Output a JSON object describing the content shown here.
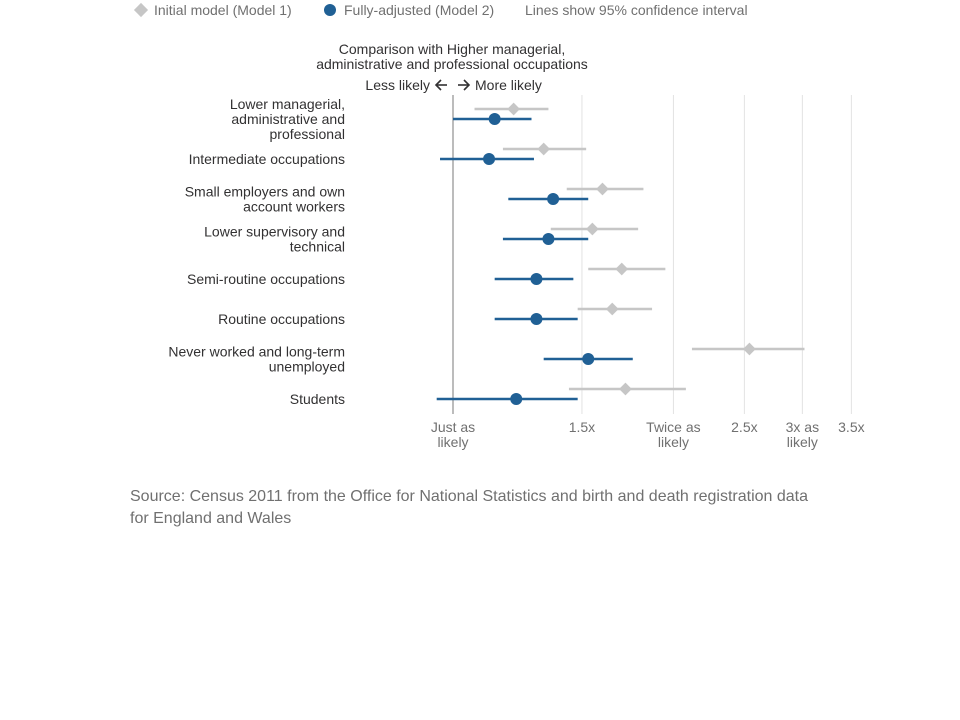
{
  "chart_data": {
    "type": "scatter",
    "header_lines": [
      "Comparison with Higher managerial,",
      "administrative and professional occupations"
    ],
    "direction": {
      "less": "Less likely",
      "more": "More likely"
    },
    "legend": [
      {
        "label": "Initial model (Model 1)",
        "marker": "diamond",
        "color": "#c6c6c6"
      },
      {
        "label": "Fully-adjusted (Model 2)",
        "marker": "circle",
        "color": "#206095"
      },
      {
        "label": "Lines show 95% confidence interval",
        "marker": "none"
      }
    ],
    "categories": [
      {
        "lines": [
          "Lower managerial,",
          "administrative and",
          "professional"
        ]
      },
      {
        "lines": [
          "Intermediate occupations"
        ]
      },
      {
        "lines": [
          "Small employers and own",
          "account workers"
        ]
      },
      {
        "lines": [
          "Lower supervisory and",
          "technical"
        ]
      },
      {
        "lines": [
          "Semi-routine occupations"
        ]
      },
      {
        "lines": [
          "Routine occupations"
        ]
      },
      {
        "lines": [
          "Never worked and long-term",
          "unemployed"
        ]
      },
      {
        "lines": [
          "Students"
        ]
      }
    ],
    "series": [
      {
        "name": "Initial model (Model 1)",
        "color": "#c6c6c6",
        "marker": "diamond",
        "values": [
          1.21,
          1.33,
          1.6,
          1.55,
          1.7,
          1.65,
          2.54,
          1.72
        ],
        "ci_low": [
          1.07,
          1.17,
          1.43,
          1.36,
          1.53,
          1.48,
          2.12,
          1.44
        ],
        "ci_high": [
          1.35,
          1.52,
          1.82,
          1.79,
          1.95,
          1.87,
          3.02,
          2.08
        ]
      },
      {
        "name": "Fully-adjusted (Model 2)",
        "color": "#206095",
        "marker": "circle",
        "values": [
          1.14,
          1.12,
          1.37,
          1.35,
          1.3,
          1.3,
          1.53,
          1.22
        ],
        "ci_low": [
          1.0,
          0.96,
          1.19,
          1.17,
          1.14,
          1.14,
          1.33,
          0.95
        ],
        "ci_high": [
          1.28,
          1.29,
          1.53,
          1.53,
          1.46,
          1.48,
          1.76,
          1.48
        ]
      }
    ],
    "x_ticks": [
      {
        "value": 1.0,
        "lines": [
          "Just as",
          "likely"
        ]
      },
      {
        "value": 1.5,
        "lines": [
          "1.5x"
        ]
      },
      {
        "value": 2.0,
        "lines": [
          "Twice as",
          "likely"
        ]
      },
      {
        "value": 2.5,
        "lines": [
          "2.5x"
        ]
      },
      {
        "value": 3.0,
        "lines": [
          "3x as",
          "likely"
        ]
      },
      {
        "value": 3.5,
        "lines": [
          "3.5x"
        ]
      }
    ],
    "x_scale": "log",
    "grid": true
  },
  "source": "Source: Census 2011 from the Office for National Statistics and birth and death registration data for England and Wales"
}
